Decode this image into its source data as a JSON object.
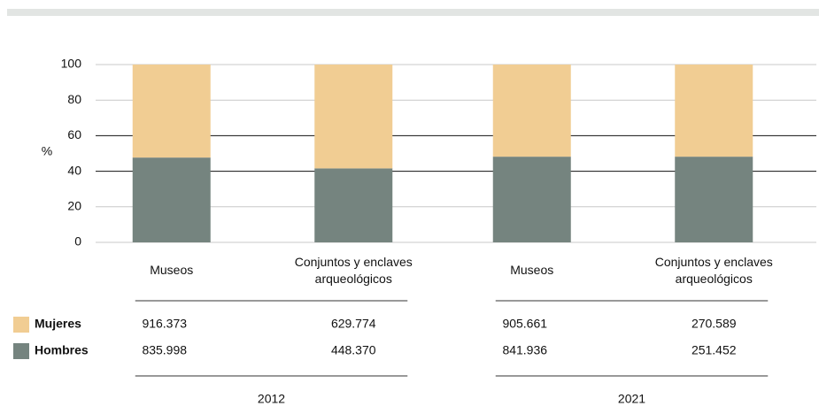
{
  "chart_data": {
    "type": "bar",
    "stacked": true,
    "y_label": "%",
    "categories": [
      "Museos",
      "Conjuntos y enclaves arqueológicos",
      "Museos",
      "Conjuntos y enclaves arqueológicos"
    ],
    "groups": [
      "2012",
      "2021"
    ],
    "series": [
      {
        "name": "Hombres",
        "color": "#75847f",
        "values": [
          47.7,
          41.6,
          48.2,
          48.2
        ],
        "table": [
          "835.998",
          "448.370",
          "841.936",
          "251.452"
        ]
      },
      {
        "name": "Mujeres",
        "color": "#f1cd93",
        "values": [
          52.3,
          58.4,
          51.8,
          51.8
        ],
        "table": [
          "916.373",
          "629.774",
          "905.661",
          "270.589"
        ]
      }
    ],
    "ylim": [
      0,
      100
    ],
    "yticks": [
      0,
      20,
      40,
      60,
      80,
      100
    ],
    "grid": true
  }
}
